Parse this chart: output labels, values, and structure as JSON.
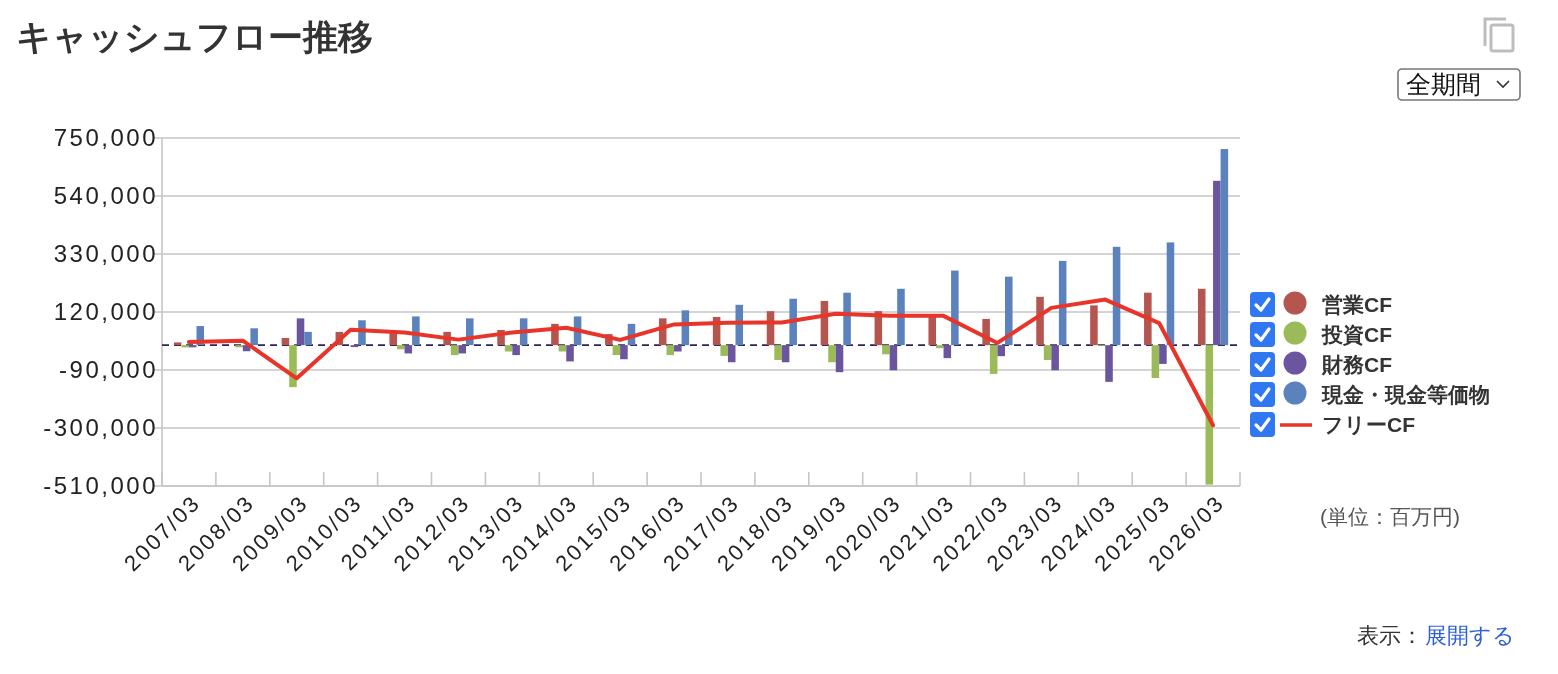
{
  "chart_data": {
    "type": "bar",
    "title": "キャッシュフロー推移",
    "categories": [
      "2007/03",
      "2008/03",
      "2009/03",
      "2010/03",
      "2011/03",
      "2012/03",
      "2013/03",
      "2014/03",
      "2015/03",
      "2016/03",
      "2017/03",
      "2018/03",
      "2019/03",
      "2020/03",
      "2021/03",
      "2022/03",
      "2023/03",
      "2024/03",
      "2025/03",
      "2026/03"
    ],
    "series": [
      {
        "name": "営業CF",
        "color": "#b5554f",
        "values": [
          10000,
          null,
          26000,
          48000,
          48000,
          48000,
          55000,
          77000,
          40000,
          97000,
          102000,
          123000,
          160000,
          123000,
          102000,
          95000,
          175000,
          144000,
          190000,
          204000
        ]
      },
      {
        "name": "投資CF",
        "color": "#9bbb59",
        "values": [
          -8000,
          -8000,
          -152000,
          null,
          -15000,
          -36000,
          -23000,
          -23000,
          -36000,
          -36000,
          -39000,
          -54000,
          -62000,
          -33000,
          -11000,
          -104000,
          -54000,
          -3000,
          -119000,
          -505000
        ]
      },
      {
        "name": "財務CF",
        "color": "#6b559e",
        "values": [
          -8000,
          -22000,
          97000,
          -7000,
          -30000,
          -30000,
          -36000,
          -59000,
          -51000,
          -23000,
          -62000,
          -62000,
          -98000,
          -91000,
          -47000,
          -40000,
          -91000,
          -133000,
          -68000,
          595000
        ]
      },
      {
        "name": "現金・現金等価物",
        "color": "#5b82bc",
        "values": [
          69000,
          61000,
          48000,
          90000,
          104000,
          97000,
          97000,
          104000,
          77000,
          126000,
          146000,
          168000,
          190000,
          204000,
          270000,
          248000,
          305000,
          356000,
          372000,
          710000
        ]
      },
      {
        "name": "フリーCF",
        "type": "line",
        "color": "#e8352a",
        "values": [
          11000,
          16000,
          -120000,
          56000,
          46000,
          20000,
          46000,
          63000,
          19000,
          75000,
          81000,
          82000,
          114000,
          106000,
          106000,
          8000,
          135000,
          165000,
          80000,
          -290000
        ]
      }
    ],
    "ylim": [
      -510000,
      750000
    ],
    "yticks": [
      {
        "value": -510000,
        "label": "-510,000"
      },
      {
        "value": -300000,
        "label": "-300,000"
      },
      {
        "value": -90000,
        "label": "-90,000"
      },
      {
        "value": 120000,
        "label": "120,000"
      },
      {
        "value": 330000,
        "label": "330,000"
      },
      {
        "value": 540000,
        "label": "540,000"
      },
      {
        "value": 750000,
        "label": "750,000"
      }
    ],
    "grid": "y",
    "legend": "right",
    "ref_lines": [
      {
        "axis": "y",
        "value": 0,
        "color": "#2e2358",
        "line_style": "dashed"
      }
    ],
    "annotations": [
      "(単位：百万円)",
      "全期間",
      "表示：",
      "展開する"
    ]
  }
}
